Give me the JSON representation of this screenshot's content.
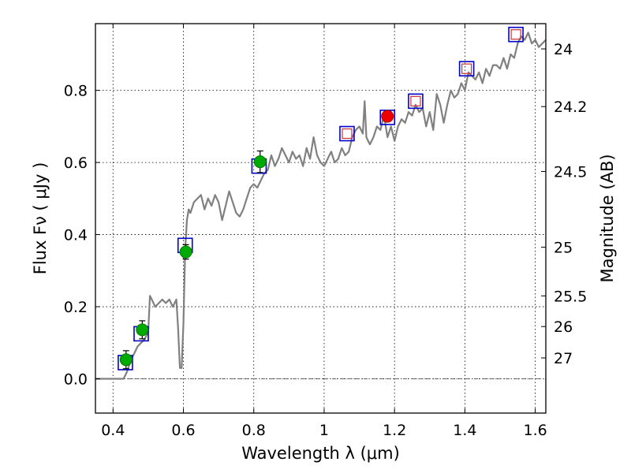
{
  "chart_data": {
    "type": "scatter",
    "xlabel": "Wavelength  λ (μm)",
    "ylabel": "Flux  Fν  ( μJy )",
    "y2label": "Magnitude (AB)",
    "xlim": [
      0.35,
      1.63
    ],
    "ylim": [
      -0.095,
      0.985
    ],
    "grid": true,
    "x_ticks": [
      0.4,
      0.6,
      0.8,
      1.0,
      1.2,
      1.4,
      1.6
    ],
    "x_tick_labels": [
      "0.4",
      "0.6",
      "0.8",
      "1",
      "1.2",
      "1.4",
      "1.6"
    ],
    "y_ticks": [
      0.0,
      0.2,
      0.4,
      0.6,
      0.8
    ],
    "y_tick_labels": [
      "0.0",
      "0.2",
      "0.4",
      "0.6",
      "0.8"
    ],
    "y2_ticks": [
      {
        "label": "24",
        "flux": 0.915
      },
      {
        "label": "24.2",
        "flux": 0.755
      },
      {
        "label": "24.5",
        "flux": 0.575
      },
      {
        "label": "25",
        "flux": 0.365
      },
      {
        "label": "25.5",
        "flux": 0.23
      },
      {
        "label": "26",
        "flux": 0.145
      },
      {
        "label": "27",
        "flux": 0.058
      }
    ],
    "colors": {
      "spectrum": "#808080",
      "model_box": "#0000cc",
      "observed_green": "#00aa00",
      "observed_red": "#ee0000",
      "predicted_box": "#cc3333"
    },
    "series": [
      {
        "kind": "line",
        "x": [
          0.35,
          0.4,
          0.43,
          0.44,
          0.45,
          0.46,
          0.47,
          0.48,
          0.49,
          0.5,
          0.505,
          0.51,
          0.52,
          0.53,
          0.54,
          0.55,
          0.56,
          0.57,
          0.58,
          0.585,
          0.59,
          0.595,
          0.6,
          0.605,
          0.61,
          0.615,
          0.62,
          0.63,
          0.64,
          0.65,
          0.66,
          0.67,
          0.68,
          0.69,
          0.7,
          0.71,
          0.72,
          0.73,
          0.74,
          0.75,
          0.76,
          0.77,
          0.78,
          0.79,
          0.8,
          0.81,
          0.82,
          0.83,
          0.84,
          0.85,
          0.86,
          0.87,
          0.88,
          0.89,
          0.9,
          0.91,
          0.92,
          0.93,
          0.94,
          0.95,
          0.96,
          0.97,
          0.98,
          0.99,
          1.0,
          1.01,
          1.02,
          1.03,
          1.04,
          1.05,
          1.06,
          1.07,
          1.08,
          1.09,
          1.1,
          1.11,
          1.115,
          1.12,
          1.13,
          1.14,
          1.15,
          1.16,
          1.17,
          1.18,
          1.19,
          1.2,
          1.21,
          1.22,
          1.23,
          1.24,
          1.25,
          1.26,
          1.27,
          1.28,
          1.29,
          1.3,
          1.31,
          1.32,
          1.33,
          1.34,
          1.35,
          1.36,
          1.37,
          1.38,
          1.39,
          1.4,
          1.41,
          1.42,
          1.43,
          1.44,
          1.45,
          1.46,
          1.47,
          1.48,
          1.49,
          1.5,
          1.51,
          1.52,
          1.53,
          1.54,
          1.55,
          1.56,
          1.57,
          1.58,
          1.59,
          1.6,
          1.61,
          1.63
        ],
        "y": [
          0.0,
          0.0,
          0.0,
          0.02,
          0.05,
          0.07,
          0.09,
          0.1,
          0.11,
          0.13,
          0.23,
          0.22,
          0.2,
          0.21,
          0.22,
          0.21,
          0.22,
          0.2,
          0.22,
          0.14,
          0.03,
          0.03,
          0.15,
          0.36,
          0.44,
          0.47,
          0.46,
          0.49,
          0.5,
          0.51,
          0.47,
          0.5,
          0.48,
          0.51,
          0.49,
          0.44,
          0.48,
          0.52,
          0.49,
          0.46,
          0.45,
          0.47,
          0.5,
          0.53,
          0.54,
          0.53,
          0.55,
          0.57,
          0.58,
          0.62,
          0.59,
          0.61,
          0.64,
          0.62,
          0.6,
          0.63,
          0.61,
          0.62,
          0.59,
          0.64,
          0.61,
          0.67,
          0.62,
          0.6,
          0.59,
          0.61,
          0.63,
          0.6,
          0.61,
          0.64,
          0.62,
          0.63,
          0.67,
          0.69,
          0.7,
          0.68,
          0.77,
          0.67,
          0.65,
          0.67,
          0.7,
          0.69,
          0.73,
          0.67,
          0.7,
          0.66,
          0.7,
          0.72,
          0.71,
          0.74,
          0.73,
          0.76,
          0.74,
          0.75,
          0.7,
          0.74,
          0.69,
          0.79,
          0.76,
          0.71,
          0.76,
          0.8,
          0.78,
          0.79,
          0.82,
          0.8,
          0.85,
          0.84,
          0.83,
          0.85,
          0.82,
          0.86,
          0.84,
          0.87,
          0.87,
          0.86,
          0.89,
          0.86,
          0.9,
          0.89,
          0.93,
          0.95,
          0.94,
          0.96,
          0.93,
          0.94,
          0.92,
          0.94
        ]
      },
      {
        "kind": "model_boxes",
        "x": [
          0.435,
          0.48,
          0.605,
          0.815,
          1.065,
          1.18,
          1.26,
          1.405,
          1.545
        ],
        "y": [
          0.045,
          0.125,
          0.37,
          0.59,
          0.68,
          0.725,
          0.77,
          0.86,
          0.955
        ]
      },
      {
        "kind": "observed_green",
        "x": [
          0.437,
          0.483,
          0.607,
          0.818
        ],
        "y": [
          0.053,
          0.136,
          0.352,
          0.602
        ],
        "err": [
          0.025,
          0.025,
          0.02,
          0.03
        ]
      },
      {
        "kind": "observed_red",
        "x": [
          1.18
        ],
        "y": [
          0.728
        ]
      },
      {
        "kind": "predicted_boxes",
        "x": [
          1.065,
          1.26,
          1.405,
          1.545
        ],
        "y": [
          0.68,
          0.77,
          0.86,
          0.955
        ]
      }
    ]
  }
}
